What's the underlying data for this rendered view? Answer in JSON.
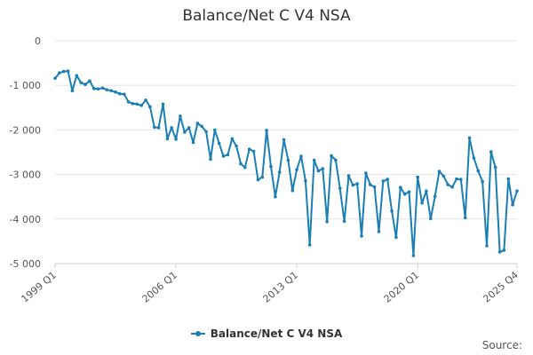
{
  "colors": {
    "series": "#1b7fb5",
    "grid": "#e6e6e6",
    "axis": "#cccccc"
  },
  "footer": {
    "source_label": "Source:"
  },
  "chart_data": {
    "type": "line",
    "title": "Balance/Net C V4 NSA",
    "xlabel": "",
    "ylabel": "",
    "ylim": [
      -5000,
      0
    ],
    "yticks": [
      0,
      -1000,
      -2000,
      -3000,
      -4000,
      -5000
    ],
    "ytick_labels": [
      "0",
      "-1 000",
      "-2 000",
      "-3 000",
      "-4 000",
      "-5 000"
    ],
    "xtick_labels": [
      "1999 Q1",
      "2006 Q1",
      "2013 Q1",
      "2020 Q1",
      "2025 Q4"
    ],
    "xtick_index": [
      0,
      28,
      56,
      84,
      107
    ],
    "grid": true,
    "legend": "bottom",
    "series": [
      {
        "name": "Balance/Net C V4 NSA",
        "x_start": "1999 Q1",
        "x_end": "2025 Q4",
        "values": [
          -840,
          -720,
          -690,
          -680,
          -1120,
          -780,
          -940,
          -980,
          -900,
          -1070,
          -1080,
          -1060,
          -1100,
          -1120,
          -1150,
          -1190,
          -1200,
          -1370,
          -1410,
          -1420,
          -1450,
          -1330,
          -1480,
          -1940,
          -1950,
          -1420,
          -2200,
          -1950,
          -2210,
          -1690,
          -2050,
          -1950,
          -2280,
          -1850,
          -1920,
          -2040,
          -2660,
          -2000,
          -2300,
          -2590,
          -2560,
          -2200,
          -2360,
          -2760,
          -2840,
          -2430,
          -2480,
          -3120,
          -3060,
          -2010,
          -2820,
          -3500,
          -2950,
          -2220,
          -2680,
          -3360,
          -2890,
          -2590,
          -3140,
          -4580,
          -2680,
          -2920,
          -2870,
          -4060,
          -2580,
          -2680,
          -3310,
          -4050,
          -3030,
          -3240,
          -3210,
          -4380,
          -2970,
          -3230,
          -3280,
          -4280,
          -3150,
          -3110,
          -3820,
          -4410,
          -3290,
          -3440,
          -3390,
          -4820,
          -3060,
          -3640,
          -3370,
          -3990,
          -3490,
          -2930,
          -3040,
          -3230,
          -3280,
          -3100,
          -3110,
          -3970,
          -2180,
          -2630,
          -2920,
          -3160,
          -4600,
          -2490,
          -2840,
          -4740,
          -4700,
          -3100,
          -3680,
          -3370
        ]
      }
    ]
  }
}
